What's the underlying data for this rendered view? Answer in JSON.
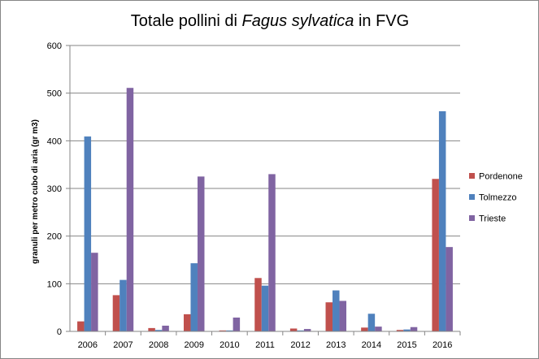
{
  "chart_data": {
    "type": "bar",
    "title": {
      "prefix": "Totale pollini di ",
      "italic": "Fagus sylvatica",
      "suffix": " in FVG"
    },
    "xlabel": "",
    "ylabel": "granuli per metro cubo di aria (gr m3)",
    "ylim": [
      0,
      600
    ],
    "yticks": [
      "0",
      "100",
      "200",
      "300",
      "400",
      "500",
      "600"
    ],
    "grid": true,
    "legend_position": "right",
    "categories": [
      "2006",
      "2007",
      "2008",
      "2009",
      "2010",
      "2011",
      "2012",
      "2013",
      "2014",
      "2015",
      "2016"
    ],
    "series": [
      {
        "name": "Pordenone",
        "color": "#C0504D",
        "values": [
          21,
          76,
          7,
          36,
          2,
          112,
          6,
          61,
          8,
          3,
          320
        ]
      },
      {
        "name": "Tolmezzo",
        "color": "#4F81BD",
        "values": [
          409,
          108,
          3,
          143,
          2,
          96,
          2,
          86,
          37,
          4,
          462
        ]
      },
      {
        "name": "Trieste",
        "color": "#8064A2",
        "values": [
          165,
          511,
          12,
          325,
          29,
          330,
          5,
          64,
          10,
          9,
          177
        ]
      }
    ]
  }
}
